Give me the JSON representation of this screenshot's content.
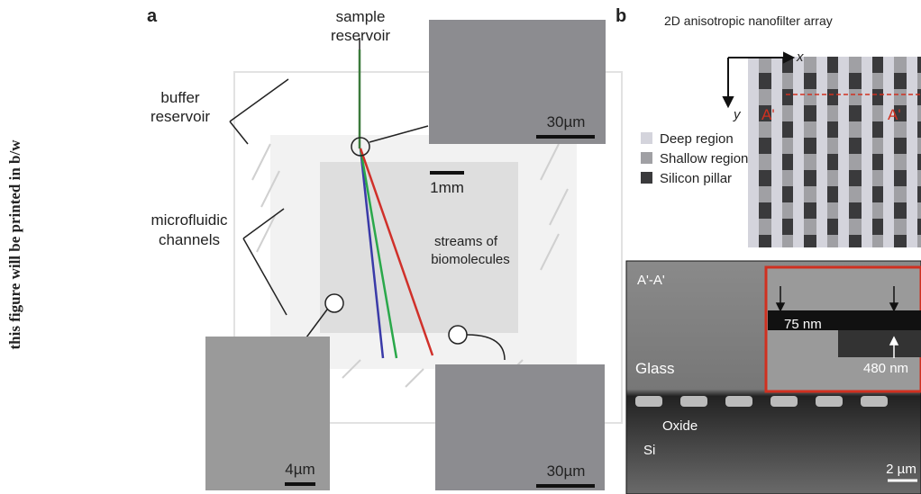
{
  "side_note": "this figure will be printed in b/w",
  "panel_a": {
    "label": "a",
    "sample_reservoir": [
      "sample",
      "reservoir"
    ],
    "buffer_reservoir": [
      "buffer",
      "reservoir"
    ],
    "microfluidic_channels": [
      "microfluidic",
      "channels"
    ],
    "streams": [
      "streams of",
      "biomolecules"
    ],
    "scale_main": "1mm",
    "scale_top_inset": "30µm",
    "scale_left_inset": "4µm",
    "scale_right_inset": "30µm"
  },
  "panel_b": {
    "label": "b",
    "title": "2D anisotropic nanofilter array",
    "axis_x": "x",
    "axis_y": "y",
    "cut_left": "A'",
    "cut_right": "A'",
    "legend": [
      "Deep region",
      "Shallow region",
      "Silicon pillar"
    ],
    "sem": {
      "section": "A'-A'",
      "glass": "Glass",
      "depth_shallow": "75 nm",
      "depth_deep": "480 nm",
      "oxide": "Oxide",
      "si": "Si",
      "scale": "2 µm"
    }
  }
}
